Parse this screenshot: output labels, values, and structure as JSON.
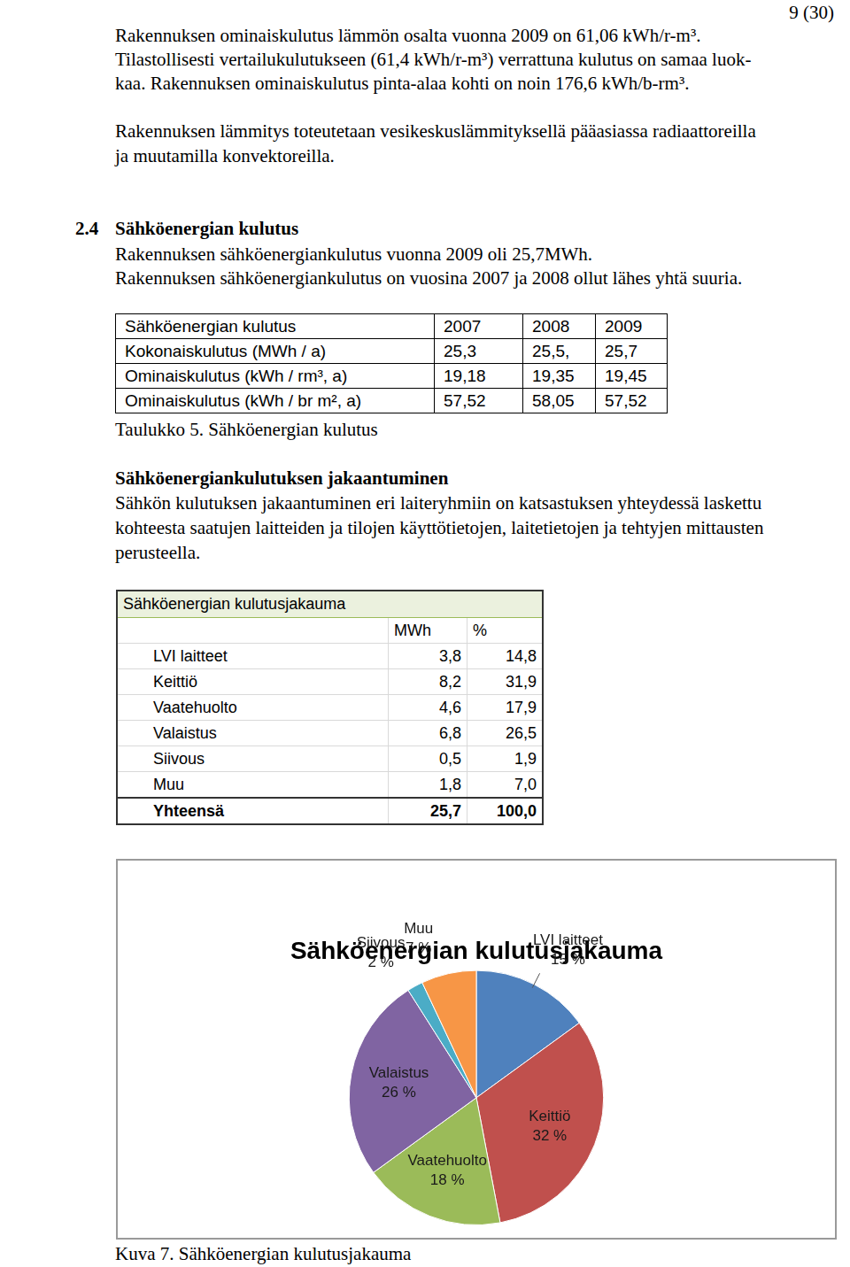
{
  "page_number": "9 (30)",
  "paragraphs": [
    [
      "Rakennuksen ominaiskulutus lämmön osalta vuonna 2009 on 61,06 kWh/r-m³.",
      "Tilastollisesti vertailukulutukseen (61,4 kWh/r-m³) verrattuna kulutus on samaa luok-",
      "kaa. Rakennuksen ominaiskulutus pinta-alaa kohti on noin 176,6 kWh/b-rm³."
    ],
    [
      "Rakennuksen lämmitys toteutetaan vesikeskuslämmityksellä pääasiassa radiaattoreilla",
      "ja muutamilla konvektoreilla."
    ]
  ],
  "section": {
    "number": "2.4",
    "title": "Sähköenergian kulutus",
    "lines": [
      "Rakennuksen sähköenergiankulutus vuonna 2009 oli 25,7MWh.",
      "Rakennuksen sähköenergiankulutus on vuosina 2007 ja 2008 ollut lähes yhtä suuria."
    ]
  },
  "table": {
    "header": [
      "Sähköenergian kulutus",
      "2007",
      "2008",
      "2009"
    ],
    "rows": [
      [
        "Kokonaiskulutus (MWh / a)",
        "25,3",
        "25,5,",
        "25,7"
      ],
      [
        "Ominaiskulutus (kWh / rm³, a)",
        "19,18",
        "19,35",
        "19,45"
      ],
      [
        "Ominaiskulutus (kWh / br m², a)",
        "57,52",
        "58,05",
        "57,52"
      ]
    ],
    "caption": "Taulukko 5. Sähköenergian kulutus"
  },
  "subsection": {
    "title": "Sähköenergiankulutuksen jakaantuminen",
    "lines": [
      "Sähkön kulutuksen jakaantuminen eri laiteryhmiin on katsastuksen yhteydessä laskettu",
      "kohteesta saatujen laitteiden ja tilojen käyttötietojen, laitetietojen ja tehtyjen mittausten",
      "perusteella."
    ]
  },
  "distribution_table": {
    "title": "Sähköenergian kulutusjakauma",
    "header": [
      "MWh",
      "%"
    ],
    "rows": [
      [
        "LVI laitteet",
        "3,8",
        "14,8"
      ],
      [
        "Keittiö",
        "8,2",
        "31,9"
      ],
      [
        "Vaatehuolto",
        "4,6",
        "17,9"
      ],
      [
        "Valaistus",
        "6,8",
        "26,5"
      ],
      [
        "Siivous",
        "0,5",
        "1,9"
      ],
      [
        "Muu",
        "1,8",
        "7,0"
      ]
    ],
    "total": [
      "Yhteensä",
      "25,7",
      "100,0"
    ]
  },
  "chart_data": {
    "type": "pie",
    "title": "Sähköenergian kulutusjakauma",
    "categories": [
      "LVI laitteet",
      "Keittiö",
      "Vaatehuolto",
      "Valaistus",
      "Siivous",
      "Muu"
    ],
    "values": [
      15,
      32,
      18,
      26,
      2,
      7
    ],
    "value_labels": [
      "15 %",
      "32 %",
      "18 %",
      "26 %",
      "2 %",
      "7 %"
    ],
    "colors": [
      "#4f81bd",
      "#c0504d",
      "#9bbb59",
      "#8064a2",
      "#4bacc6",
      "#f79646"
    ],
    "data_labels": true,
    "legend": false
  },
  "figure_caption": "Kuva 7. Sähköenergian kulutusjakauma"
}
